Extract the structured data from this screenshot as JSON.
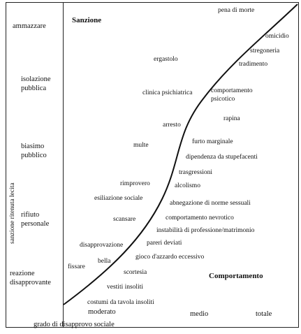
{
  "axes": {
    "y_title": "sanzione ritenuta lecita",
    "x_title": "grado di disapprovo sociale",
    "sanction_heading": "Sanzione",
    "behavior_heading": "Comportamento"
  },
  "sanction_levels": [
    "ammazzare",
    "isolazione",
    "pubblica",
    "biasimo",
    "pubblico",
    "rifiuto",
    "personale",
    "reazione",
    "disapprovante"
  ],
  "disapproval_levels": [
    "moderato",
    "medio",
    "totale"
  ],
  "items": [
    "pena di morte",
    "omicidio",
    "stregoneria",
    "tradimento",
    "ergastolo",
    "clinica psichiatrica",
    "comportamento",
    "psicotico",
    "rapina",
    "arresto",
    "multe",
    "furto marginale",
    "dipendenza da stupefacenti",
    "trasgressioni",
    "rimprovero",
    "alcolismo",
    "esiliazione sociale",
    "abnegazione di norme sessuali",
    "scansare",
    "comportamento nevrotico",
    "instabilità di professione/matrimonio",
    "disapprovazione",
    "pareri deviati",
    "bella",
    "gioco d'azzardo eccessivo",
    "fissare",
    "scortesia",
    "vestiti insoliti",
    "costumi da tavola insoliti"
  ]
}
